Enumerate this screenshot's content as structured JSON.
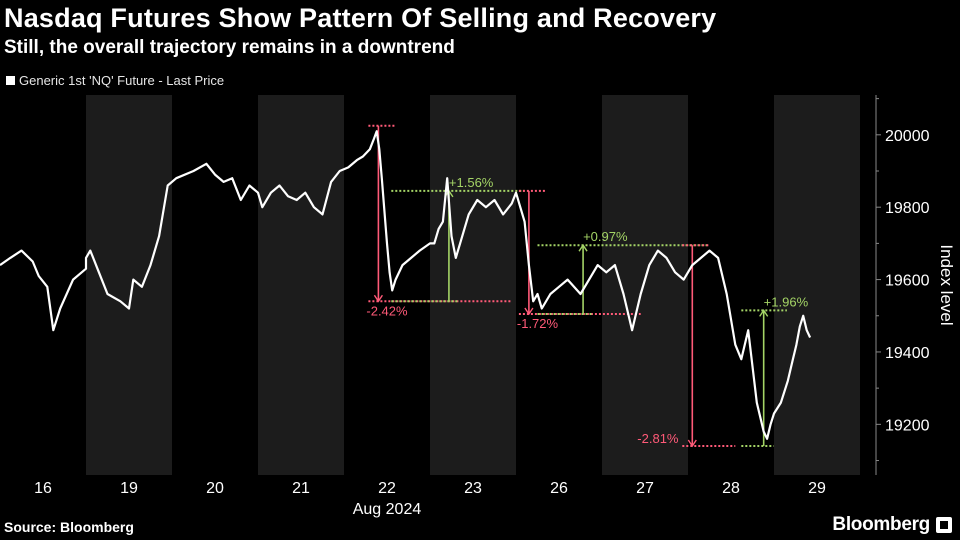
{
  "title": "Nasdaq Futures Show Pattern Of Selling and Recovery",
  "subtitle": "Still, the overall trajectory remains in a downtrend",
  "source": "Source: Bloomberg",
  "brand": "Bloomberg",
  "colors": {
    "background": "#000000",
    "line": "#ffffff",
    "shade": "#1c1c1c",
    "drop": "#ff5a78",
    "gain": "#a4d466",
    "axis": "#888888"
  },
  "chart_data": {
    "type": "line",
    "xlabel": "Aug 2024",
    "ylabel": "Index level",
    "ylim": [
      19060,
      20110
    ],
    "yticks": [
      19200,
      19400,
      19600,
      19800,
      20000
    ],
    "day_labels": [
      "16",
      "19",
      "20",
      "21",
      "22",
      "23",
      "26",
      "27",
      "28",
      "29"
    ],
    "shaded_days": [
      "19",
      "21",
      "23",
      "27",
      "29"
    ],
    "series": [
      {
        "name": "Generic 1st 'NQ' Future - Last Price",
        "points": [
          [
            "16",
            0.0,
            19640
          ],
          [
            "16",
            0.12,
            19660
          ],
          [
            "16",
            0.25,
            19680
          ],
          [
            "16",
            0.38,
            19650
          ],
          [
            "16",
            0.45,
            19610
          ],
          [
            "16",
            0.55,
            19580
          ],
          [
            "16",
            0.62,
            19460
          ],
          [
            "16",
            0.7,
            19520
          ],
          [
            "16",
            0.85,
            19600
          ],
          [
            "16",
            1.0,
            19630
          ],
          [
            "19",
            0.0,
            19660
          ],
          [
            "19",
            0.05,
            19680
          ],
          [
            "19",
            0.15,
            19620
          ],
          [
            "19",
            0.25,
            19560
          ],
          [
            "19",
            0.4,
            19540
          ],
          [
            "19",
            0.5,
            19520
          ],
          [
            "19",
            0.55,
            19600
          ],
          [
            "19",
            0.65,
            19580
          ],
          [
            "19",
            0.75,
            19640
          ],
          [
            "19",
            0.85,
            19720
          ],
          [
            "19",
            0.95,
            19860
          ],
          [
            "20",
            0.05,
            19880
          ],
          [
            "20",
            0.25,
            19900
          ],
          [
            "20",
            0.4,
            19920
          ],
          [
            "20",
            0.5,
            19890
          ],
          [
            "20",
            0.6,
            19870
          ],
          [
            "20",
            0.7,
            19880
          ],
          [
            "20",
            0.8,
            19820
          ],
          [
            "20",
            0.9,
            19860
          ],
          [
            "20",
            1.0,
            19840
          ],
          [
            "21",
            0.05,
            19800
          ],
          [
            "21",
            0.15,
            19840
          ],
          [
            "21",
            0.25,
            19860
          ],
          [
            "21",
            0.35,
            19830
          ],
          [
            "21",
            0.45,
            19820
          ],
          [
            "21",
            0.55,
            19840
          ],
          [
            "21",
            0.65,
            19800
          ],
          [
            "21",
            0.75,
            19780
          ],
          [
            "21",
            0.85,
            19870
          ],
          [
            "21",
            0.95,
            19900
          ],
          [
            "22",
            0.05,
            19910
          ],
          [
            "22",
            0.15,
            19930
          ],
          [
            "22",
            0.22,
            19940
          ],
          [
            "22",
            0.3,
            19960
          ],
          [
            "22",
            0.35,
            19990
          ],
          [
            "22",
            0.38,
            20010
          ],
          [
            "22",
            0.41,
            19960
          ],
          [
            "22",
            0.44,
            19880
          ],
          [
            "22",
            0.47,
            19790
          ],
          [
            "22",
            0.5,
            19700
          ],
          [
            "22",
            0.53,
            19620
          ],
          [
            "22",
            0.56,
            19570
          ],
          [
            "22",
            0.6,
            19600
          ],
          [
            "22",
            0.68,
            19640
          ],
          [
            "22",
            0.78,
            19660
          ],
          [
            "22",
            0.88,
            19680
          ],
          [
            "22",
            1.0,
            19700
          ],
          [
            "23",
            0.05,
            19700
          ],
          [
            "23",
            0.1,
            19740
          ],
          [
            "23",
            0.15,
            19760
          ],
          [
            "23",
            0.2,
            19880
          ],
          [
            "23",
            0.25,
            19720
          ],
          [
            "23",
            0.3,
            19660
          ],
          [
            "23",
            0.35,
            19700
          ],
          [
            "23",
            0.45,
            19780
          ],
          [
            "23",
            0.55,
            19820
          ],
          [
            "23",
            0.65,
            19800
          ],
          [
            "23",
            0.75,
            19820
          ],
          [
            "23",
            0.85,
            19780
          ],
          [
            "23",
            0.95,
            19810
          ],
          [
            "26",
            0.0,
            19840
          ],
          [
            "26",
            0.05,
            19800
          ],
          [
            "26",
            0.1,
            19760
          ],
          [
            "26",
            0.15,
            19640
          ],
          [
            "26",
            0.2,
            19540
          ],
          [
            "26",
            0.25,
            19560
          ],
          [
            "26",
            0.3,
            19520
          ],
          [
            "26",
            0.4,
            19560
          ],
          [
            "26",
            0.5,
            19580
          ],
          [
            "26",
            0.6,
            19600
          ],
          [
            "26",
            0.75,
            19560
          ],
          [
            "26",
            0.85,
            19600
          ],
          [
            "26",
            0.95,
            19640
          ],
          [
            "27",
            0.05,
            19620
          ],
          [
            "27",
            0.15,
            19640
          ],
          [
            "27",
            0.25,
            19560
          ],
          [
            "27",
            0.35,
            19460
          ],
          [
            "27",
            0.45,
            19560
          ],
          [
            "27",
            0.55,
            19640
          ],
          [
            "27",
            0.65,
            19680
          ],
          [
            "27",
            0.75,
            19660
          ],
          [
            "27",
            0.85,
            19620
          ],
          [
            "27",
            0.95,
            19600
          ],
          [
            "28",
            0.05,
            19640
          ],
          [
            "28",
            0.15,
            19660
          ],
          [
            "28",
            0.25,
            19680
          ],
          [
            "28",
            0.35,
            19660
          ],
          [
            "28",
            0.45,
            19560
          ],
          [
            "28",
            0.55,
            19420
          ],
          [
            "28",
            0.62,
            19380
          ],
          [
            "28",
            0.7,
            19460
          ],
          [
            "28",
            0.8,
            19260
          ],
          [
            "28",
            0.88,
            19180
          ],
          [
            "28",
            0.92,
            19160
          ],
          [
            "28",
            0.96,
            19200
          ],
          [
            "29",
            0.0,
            19230
          ],
          [
            "29",
            0.08,
            19260
          ],
          [
            "29",
            0.16,
            19320
          ],
          [
            "29",
            0.22,
            19380
          ],
          [
            "29",
            0.26,
            19420
          ],
          [
            "29",
            0.3,
            19470
          ],
          [
            "29",
            0.34,
            19500
          ],
          [
            "29",
            0.38,
            19460
          ],
          [
            "29",
            0.42,
            19440
          ]
        ]
      }
    ],
    "annotations": [
      {
        "text": "-2.42%",
        "kind": "drop",
        "from": [
          "22",
          0.4,
          20025
        ],
        "to": [
          "22",
          0.4,
          19540
        ],
        "x_end": [
          "23",
          0.95
        ]
      },
      {
        "text": "+1.56%",
        "kind": "gain",
        "from": [
          "23",
          0.22,
          19540
        ],
        "to": [
          "23",
          0.22,
          19845
        ],
        "x_start": [
          "22",
          0.55
        ],
        "x_end": [
          "26",
          0.1
        ]
      },
      {
        "text": "-1.72%",
        "kind": "drop",
        "from": [
          "26",
          0.15,
          19845
        ],
        "to": [
          "26",
          0.15,
          19505
        ],
        "x_end": [
          "27",
          0.45
        ]
      },
      {
        "text": "+0.97%",
        "kind": "gain",
        "from": [
          "26",
          0.78,
          19505
        ],
        "to": [
          "26",
          0.78,
          19695
        ],
        "x_start": [
          "26",
          0.25
        ],
        "x_end": [
          "28",
          0.25
        ]
      },
      {
        "text": "-2.81%",
        "kind": "drop",
        "from": [
          "28",
          0.05,
          19695
        ],
        "to": [
          "28",
          0.05,
          19140
        ],
        "x_start": [
          "27",
          0.45
        ],
        "x_end": [
          "28",
          0.55
        ]
      },
      {
        "text": "+1.96%",
        "kind": "gain",
        "from": [
          "28",
          0.88,
          19140
        ],
        "to": [
          "28",
          0.88,
          19515
        ],
        "x_start": [
          "28",
          0.62
        ],
        "x_end": [
          "29",
          0.15
        ]
      }
    ]
  }
}
